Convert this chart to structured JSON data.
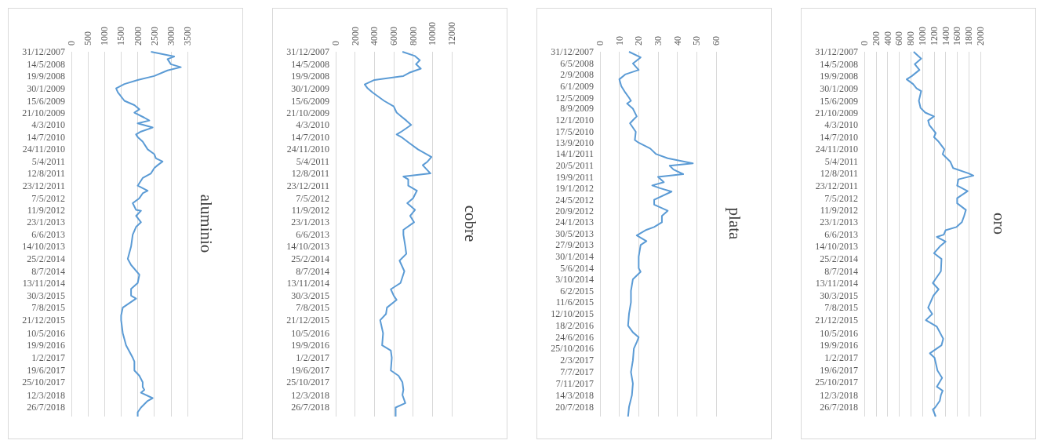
{
  "chart_data": [
    {
      "type": "line",
      "title": "aluminio",
      "orientation": "horizontal",
      "color": "#5b9bd5",
      "grid": "x",
      "x": [
        "2007-12-31",
        "2008-02-20",
        "2008-03-20",
        "2008-05-14",
        "2008-06-15",
        "2008-07-20",
        "2008-09-19",
        "2008-11-01",
        "2008-12-15",
        "2009-01-30",
        "2009-03-15",
        "2009-06-15",
        "2009-08-01",
        "2009-09-15",
        "2009-10-21",
        "2009-12-15",
        "2010-01-15",
        "2010-02-15",
        "2010-04-01",
        "2010-05-15",
        "2010-06-15",
        "2010-07-14",
        "2010-09-01",
        "2010-11-24",
        "2011-01-15",
        "2011-03-01",
        "2011-04-05",
        "2011-05-15",
        "2011-06-15",
        "2011-08-12",
        "2011-10-01",
        "2011-12-23",
        "2012-02-15",
        "2012-03-15",
        "2012-05-07",
        "2012-06-30",
        "2012-09-11",
        "2012-09-20",
        "2012-11-15",
        "2013-01-23",
        "2013-03-15",
        "2013-06-06",
        "2013-10-14",
        "2014-02-25",
        "2014-05-01",
        "2014-08-15",
        "2014-11-13",
        "2015-01-15",
        "2015-03-30",
        "2015-05-01",
        "2015-08-07",
        "2015-11-01",
        "2015-12-21",
        "2016-05-10",
        "2016-09-19",
        "2017-02-01",
        "2017-03-15",
        "2017-06-19",
        "2017-08-15",
        "2017-10-25",
        "2017-12-15",
        "2018-01-15",
        "2018-02-15",
        "2018-04-15",
        "2018-05-15",
        "2018-07-26",
        "2018-09-15",
        "2018-11-01"
      ],
      "values": [
        2400,
        3100,
        2900,
        3000,
        3300,
        2900,
        2500,
        2000,
        1600,
        1350,
        1400,
        1600,
        1900,
        2050,
        1900,
        2200,
        2350,
        2000,
        2450,
        2100,
        1950,
        2000,
        2150,
        2300,
        2500,
        2550,
        2750,
        2600,
        2500,
        2400,
        2150,
        2000,
        2300,
        2150,
        2050,
        1850,
        1950,
        2100,
        1950,
        2100,
        1950,
        1850,
        1800,
        1700,
        1800,
        2050,
        2000,
        1800,
        1800,
        1950,
        1550,
        1500,
        1500,
        1550,
        1650,
        1850,
        1900,
        1900,
        2050,
        2150,
        2150,
        2200,
        2100,
        2450,
        2300,
        2100,
        2000,
        2000
      ],
      "xlim": [
        0,
        3500
      ],
      "xticks": [
        0,
        500,
        1000,
        1500,
        2000,
        2500,
        3000,
        3500
      ],
      "ylim": [
        "2018-11-01",
        "2007-12-31"
      ],
      "yticks": [
        {
          "value": "2007-12-31",
          "label": "31/12/2007"
        },
        {
          "value": "2008-05-14",
          "label": "14/5/2008"
        },
        {
          "value": "2008-09-19",
          "label": "19/9/2008"
        },
        {
          "value": "2009-01-30",
          "label": "30/1/2009"
        },
        {
          "value": "2009-06-15",
          "label": "15/6/2009"
        },
        {
          "value": "2009-10-21",
          "label": "21/10/2009"
        },
        {
          "value": "2010-03-04",
          "label": "4/3/2010"
        },
        {
          "value": "2010-07-14",
          "label": "14/7/2010"
        },
        {
          "value": "2010-11-24",
          "label": "24/11/2010"
        },
        {
          "value": "2011-04-05",
          "label": "5/4/2011"
        },
        {
          "value": "2011-08-12",
          "label": "12/8/2011"
        },
        {
          "value": "2011-12-23",
          "label": "23/12/2011"
        },
        {
          "value": "2012-05-07",
          "label": "7/5/2012"
        },
        {
          "value": "2012-09-11",
          "label": "11/9/2012"
        },
        {
          "value": "2013-01-23",
          "label": "23/1/2013"
        },
        {
          "value": "2013-06-06",
          "label": "6/6/2013"
        },
        {
          "value": "2013-10-14",
          "label": "14/10/2013"
        },
        {
          "value": "2014-02-25",
          "label": "25/2/2014"
        },
        {
          "value": "2014-07-08",
          "label": "8/7/2014"
        },
        {
          "value": "2014-11-13",
          "label": "13/11/2014"
        },
        {
          "value": "2015-03-30",
          "label": "30/3/2015"
        },
        {
          "value": "2015-08-07",
          "label": "7/8/2015"
        },
        {
          "value": "2015-12-21",
          "label": "21/12/2015"
        },
        {
          "value": "2016-05-10",
          "label": "10/5/2016"
        },
        {
          "value": "2016-09-19",
          "label": "19/9/2016"
        },
        {
          "value": "2017-02-01",
          "label": "1/2/2017"
        },
        {
          "value": "2017-06-19",
          "label": "19/6/2017"
        },
        {
          "value": "2017-10-25",
          "label": "25/10/2017"
        },
        {
          "value": "2018-03-12",
          "label": "12/3/2018"
        },
        {
          "value": "2018-07-26",
          "label": "26/7/2018"
        }
      ]
    },
    {
      "type": "line",
      "title": "cobre",
      "orientation": "horizontal",
      "color": "#5b9bd5",
      "grid": "x",
      "x": [
        "2007-12-31",
        "2008-02-15",
        "2008-04-01",
        "2008-05-14",
        "2008-07-01",
        "2008-08-15",
        "2008-09-19",
        "2008-11-01",
        "2008-12-20",
        "2009-01-30",
        "2009-03-15",
        "2009-06-15",
        "2009-08-15",
        "2009-10-21",
        "2010-01-15",
        "2010-03-04",
        "2010-05-15",
        "2010-06-15",
        "2010-07-14",
        "2010-09-15",
        "2010-11-24",
        "2011-02-15",
        "2011-04-05",
        "2011-05-15",
        "2011-08-12",
        "2011-09-15",
        "2011-10-15",
        "2011-12-23",
        "2012-02-15",
        "2012-05-07",
        "2012-06-30",
        "2012-09-11",
        "2012-11-15",
        "2013-01-23",
        "2013-04-15",
        "2013-06-06",
        "2013-10-14",
        "2014-01-01",
        "2014-03-15",
        "2014-07-08",
        "2014-11-13",
        "2015-01-20",
        "2015-03-30",
        "2015-05-15",
        "2015-08-07",
        "2015-10-15",
        "2015-12-21",
        "2016-05-10",
        "2016-09-19",
        "2016-11-15",
        "2017-02-01",
        "2017-06-19",
        "2017-08-15",
        "2017-10-25",
        "2018-01-15",
        "2018-03-12",
        "2018-06-08",
        "2018-07-26",
        "2018-11-01"
      ],
      "values": [
        6900,
        8200,
        8700,
        8300,
        8800,
        7600,
        7000,
        4000,
        3000,
        3300,
        3800,
        5000,
        6000,
        6300,
        7300,
        7800,
        6800,
        6300,
        6800,
        7600,
        8500,
        9900,
        9500,
        9000,
        9800,
        7000,
        7500,
        7500,
        8400,
        8000,
        7400,
        8200,
        7700,
        8100,
        7000,
        7000,
        7200,
        7300,
        6600,
        7100,
        6700,
        5700,
        6000,
        6300,
        5300,
        5200,
        4600,
        4900,
        4800,
        5700,
        5800,
        5700,
        6500,
        6900,
        7000,
        6900,
        7200,
        6200,
        6200
      ],
      "xlim": [
        0,
        12000
      ],
      "xticks": [
        0,
        2000,
        4000,
        6000,
        8000,
        10000,
        12000
      ],
      "ylim": [
        "2018-11-01",
        "2007-12-31"
      ],
      "yticks": [
        {
          "value": "2007-12-31",
          "label": "31/12/2007"
        },
        {
          "value": "2008-05-14",
          "label": "14/5/2008"
        },
        {
          "value": "2008-09-19",
          "label": "19/9/2008"
        },
        {
          "value": "2009-01-30",
          "label": "30/1/2009"
        },
        {
          "value": "2009-06-15",
          "label": "15/6/2009"
        },
        {
          "value": "2009-10-21",
          "label": "21/10/2009"
        },
        {
          "value": "2010-03-04",
          "label": "4/3/2010"
        },
        {
          "value": "2010-07-14",
          "label": "14/7/2010"
        },
        {
          "value": "2010-11-24",
          "label": "24/11/2010"
        },
        {
          "value": "2011-04-05",
          "label": "5/4/2011"
        },
        {
          "value": "2011-08-12",
          "label": "12/8/2011"
        },
        {
          "value": "2011-12-23",
          "label": "23/12/2011"
        },
        {
          "value": "2012-05-07",
          "label": "7/5/2012"
        },
        {
          "value": "2012-09-11",
          "label": "11/9/2012"
        },
        {
          "value": "2013-01-23",
          "label": "23/1/2013"
        },
        {
          "value": "2013-06-06",
          "label": "6/6/2013"
        },
        {
          "value": "2013-10-14",
          "label": "14/10/2013"
        },
        {
          "value": "2014-02-25",
          "label": "25/2/2014"
        },
        {
          "value": "2014-07-08",
          "label": "8/7/2014"
        },
        {
          "value": "2014-11-13",
          "label": "13/11/2014"
        },
        {
          "value": "2015-03-30",
          "label": "30/3/2015"
        },
        {
          "value": "2015-08-07",
          "label": "7/8/2015"
        },
        {
          "value": "2015-12-21",
          "label": "21/12/2015"
        },
        {
          "value": "2016-05-10",
          "label": "10/5/2016"
        },
        {
          "value": "2016-09-19",
          "label": "19/9/2016"
        },
        {
          "value": "2017-02-01",
          "label": "1/2/2017"
        },
        {
          "value": "2017-06-19",
          "label": "19/6/2017"
        },
        {
          "value": "2017-10-25",
          "label": "25/10/2017"
        },
        {
          "value": "2018-03-12",
          "label": "12/3/2018"
        },
        {
          "value": "2018-07-26",
          "label": "26/7/2018"
        }
      ]
    },
    {
      "type": "line",
      "title": "plata",
      "orientation": "horizontal",
      "color": "#5b9bd5",
      "grid": "x",
      "x": [
        "2007-12-31",
        "2008-03-01",
        "2008-05-06",
        "2008-07-15",
        "2008-09-02",
        "2008-10-25",
        "2009-01-06",
        "2009-03-15",
        "2009-05-12",
        "2009-06-15",
        "2009-07-15",
        "2009-09-08",
        "2009-12-01",
        "2010-01-12",
        "2010-02-15",
        "2010-05-17",
        "2010-08-15",
        "2010-09-13",
        "2010-11-15",
        "2011-01-14",
        "2011-03-01",
        "2011-04-25",
        "2011-05-20",
        "2011-07-01",
        "2011-08-20",
        "2011-09-19",
        "2011-11-15",
        "2011-12-20",
        "2012-01-19",
        "2012-02-25",
        "2012-05-24",
        "2012-07-15",
        "2012-09-20",
        "2012-11-15",
        "2013-01-24",
        "2013-03-15",
        "2013-04-15",
        "2013-06-15",
        "2013-08-15",
        "2013-09-27",
        "2014-01-30",
        "2014-06-05",
        "2014-07-15",
        "2014-10-03",
        "2015-02-06",
        "2015-06-11",
        "2015-10-12",
        "2016-02-18",
        "2016-05-01",
        "2016-06-24",
        "2016-08-15",
        "2016-10-25",
        "2017-03-02",
        "2017-07-07",
        "2017-11-07",
        "2018-03-14",
        "2018-07-20",
        "2018-11-01"
      ],
      "values": [
        15,
        21,
        17,
        20,
        13,
        10,
        11,
        13,
        15,
        16,
        14,
        17,
        19,
        17,
        15.5,
        18.5,
        18,
        20,
        26,
        29,
        35,
        48,
        36,
        38,
        43,
        30,
        33,
        27,
        31,
        37,
        28,
        28,
        35,
        32,
        32,
        28,
        24,
        19,
        24,
        21,
        20,
        20,
        21,
        17,
        16,
        16,
        15,
        14.5,
        17,
        20,
        19,
        17.5,
        17,
        16,
        17,
        16.5,
        15,
        14.5
      ],
      "xlim": [
        0,
        60
      ],
      "xticks": [
        0,
        10,
        20,
        30,
        40,
        50,
        60
      ],
      "ylim": [
        "2018-11-01",
        "2007-12-31"
      ],
      "yticks": [
        {
          "value": "2007-12-31",
          "label": "31/12/2007"
        },
        {
          "value": "2008-05-06",
          "label": "6/5/2008"
        },
        {
          "value": "2008-09-02",
          "label": "2/9/2008"
        },
        {
          "value": "2009-01-06",
          "label": "6/1/2009"
        },
        {
          "value": "2009-05-12",
          "label": "12/5/2009"
        },
        {
          "value": "2009-09-08",
          "label": "8/9/2009"
        },
        {
          "value": "2010-01-12",
          "label": "12/1/2010"
        },
        {
          "value": "2010-05-17",
          "label": "17/5/2010"
        },
        {
          "value": "2010-09-13",
          "label": "13/9/2010"
        },
        {
          "value": "2011-01-14",
          "label": "14/1/2011"
        },
        {
          "value": "2011-05-20",
          "label": "20/5/2011"
        },
        {
          "value": "2011-09-19",
          "label": "19/9/2011"
        },
        {
          "value": "2012-01-19",
          "label": "19/1/2012"
        },
        {
          "value": "2012-05-24",
          "label": "24/5/2012"
        },
        {
          "value": "2012-09-20",
          "label": "20/9/2012"
        },
        {
          "value": "2013-01-24",
          "label": "24/1/2013"
        },
        {
          "value": "2013-05-30",
          "label": "30/5/2013"
        },
        {
          "value": "2013-09-27",
          "label": "27/9/2013"
        },
        {
          "value": "2014-01-30",
          "label": "30/1/2014"
        },
        {
          "value": "2014-06-05",
          "label": "5/6/2014"
        },
        {
          "value": "2014-10-03",
          "label": "3/10/2014"
        },
        {
          "value": "2015-02-06",
          "label": "6/2/2015"
        },
        {
          "value": "2015-06-11",
          "label": "11/6/2015"
        },
        {
          "value": "2015-10-12",
          "label": "12/10/2015"
        },
        {
          "value": "2016-02-18",
          "label": "18/2/2016"
        },
        {
          "value": "2016-06-24",
          "label": "24/6/2016"
        },
        {
          "value": "2016-10-25",
          "label": "25/10/2016"
        },
        {
          "value": "2017-03-02",
          "label": "2/3/2017"
        },
        {
          "value": "2017-07-07",
          "label": "7/7/2017"
        },
        {
          "value": "2017-11-07",
          "label": "7/11/2017"
        },
        {
          "value": "2018-03-14",
          "label": "14/3/2018"
        },
        {
          "value": "2018-07-20",
          "label": "20/7/2018"
        }
      ]
    },
    {
      "type": "line",
      "title": "oro",
      "orientation": "horizontal",
      "color": "#5b9bd5",
      "grid": "x",
      "x": [
        "2007-12-31",
        "2008-03-15",
        "2008-05-14",
        "2008-07-15",
        "2008-09-19",
        "2008-10-25",
        "2008-12-15",
        "2009-01-30",
        "2009-03-01",
        "2009-06-15",
        "2009-09-01",
        "2009-10-21",
        "2009-12-01",
        "2010-01-15",
        "2010-03-04",
        "2010-06-01",
        "2010-07-14",
        "2010-09-01",
        "2010-11-24",
        "2011-01-15",
        "2011-04-05",
        "2011-06-15",
        "2011-08-12",
        "2011-09-05",
        "2011-10-15",
        "2011-12-23",
        "2012-02-20",
        "2012-05-07",
        "2012-07-01",
        "2012-09-11",
        "2012-11-15",
        "2013-01-23",
        "2013-03-15",
        "2013-04-20",
        "2013-06-06",
        "2013-07-01",
        "2013-08-20",
        "2013-10-14",
        "2013-12-25",
        "2014-02-25",
        "2014-07-08",
        "2014-11-13",
        "2015-01-20",
        "2015-03-30",
        "2015-08-07",
        "2015-10-15",
        "2015-12-21",
        "2016-03-01",
        "2016-07-10",
        "2016-09-19",
        "2016-12-15",
        "2017-02-01",
        "2017-06-19",
        "2017-09-08",
        "2017-12-12",
        "2018-01-25",
        "2018-03-12",
        "2018-05-15",
        "2018-07-26",
        "2018-08-16",
        "2018-11-01"
      ],
      "values": [
        850,
        980,
        870,
        950,
        820,
        730,
        840,
        900,
        980,
        940,
        970,
        1050,
        1200,
        1100,
        1120,
        1230,
        1200,
        1280,
        1380,
        1350,
        1480,
        1530,
        1800,
        1880,
        1620,
        1600,
        1780,
        1600,
        1600,
        1750,
        1720,
        1680,
        1590,
        1400,
        1370,
        1250,
        1400,
        1300,
        1200,
        1330,
        1320,
        1180,
        1280,
        1190,
        1100,
        1170,
        1060,
        1250,
        1360,
        1330,
        1130,
        1210,
        1260,
        1340,
        1250,
        1350,
        1320,
        1300,
        1220,
        1180,
        1230
      ],
      "xlim": [
        0,
        2000
      ],
      "xticks": [
        0,
        200,
        400,
        600,
        800,
        1000,
        1200,
        1400,
        1600,
        1800,
        2000
      ],
      "ylim": [
        "2018-11-01",
        "2007-12-31"
      ],
      "yticks": [
        {
          "value": "2007-12-31",
          "label": "31/12/2007"
        },
        {
          "value": "2008-05-14",
          "label": "14/5/2008"
        },
        {
          "value": "2008-09-19",
          "label": "19/9/2008"
        },
        {
          "value": "2009-01-30",
          "label": "30/1/2009"
        },
        {
          "value": "2009-06-15",
          "label": "15/6/2009"
        },
        {
          "value": "2009-10-21",
          "label": "21/10/2009"
        },
        {
          "value": "2010-03-04",
          "label": "4/3/2010"
        },
        {
          "value": "2010-07-14",
          "label": "14/7/2010"
        },
        {
          "value": "2010-11-24",
          "label": "24/11/2010"
        },
        {
          "value": "2011-04-05",
          "label": "5/4/2011"
        },
        {
          "value": "2011-08-12",
          "label": "12/8/2011"
        },
        {
          "value": "2011-12-23",
          "label": "23/12/2011"
        },
        {
          "value": "2012-05-07",
          "label": "7/5/2012"
        },
        {
          "value": "2012-09-11",
          "label": "11/9/2012"
        },
        {
          "value": "2013-01-23",
          "label": "23/1/2013"
        },
        {
          "value": "2013-06-06",
          "label": "6/6/2013"
        },
        {
          "value": "2013-10-14",
          "label": "14/10/2013"
        },
        {
          "value": "2014-02-25",
          "label": "25/2/2014"
        },
        {
          "value": "2014-07-08",
          "label": "8/7/2014"
        },
        {
          "value": "2014-11-13",
          "label": "13/11/2014"
        },
        {
          "value": "2015-03-30",
          "label": "30/3/2015"
        },
        {
          "value": "2015-08-07",
          "label": "7/8/2015"
        },
        {
          "value": "2015-12-21",
          "label": "21/12/2015"
        },
        {
          "value": "2016-05-10",
          "label": "10/5/2016"
        },
        {
          "value": "2016-09-19",
          "label": "19/9/2016"
        },
        {
          "value": "2017-02-01",
          "label": "1/2/2017"
        },
        {
          "value": "2017-06-19",
          "label": "19/6/2017"
        },
        {
          "value": "2017-10-25",
          "label": "25/10/2017"
        },
        {
          "value": "2018-03-12",
          "label": "12/3/2018"
        },
        {
          "value": "2018-07-26",
          "label": "26/7/2018"
        }
      ]
    }
  ]
}
